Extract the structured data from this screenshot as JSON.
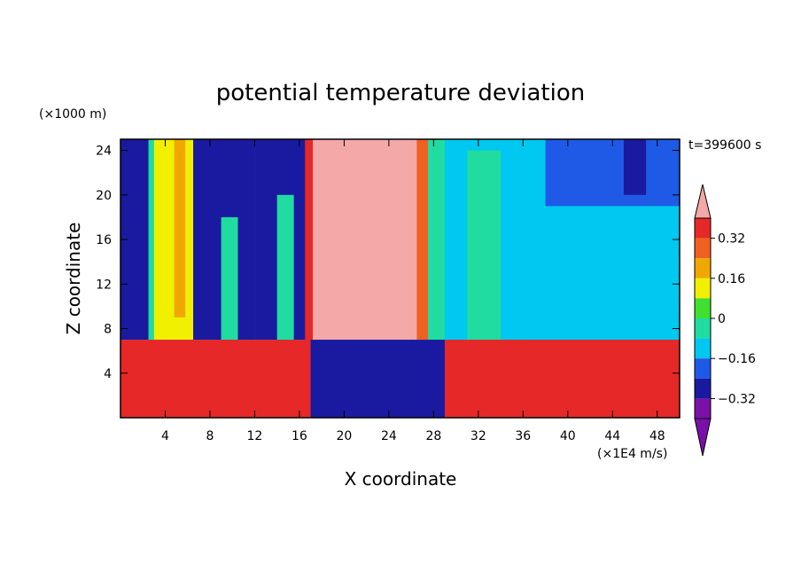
{
  "chart_data": {
    "type": "heatmap",
    "title": "potential temperature deviation",
    "xlabel": "X coordinate",
    "ylabel": "Z coordinate",
    "x_units": "(×1E4 m/s)",
    "y_units": "(×1000 m)",
    "time_label": "t=399600 s",
    "xlim": [
      0,
      50
    ],
    "ylim": [
      0,
      25
    ],
    "x_ticks": [
      4,
      8,
      12,
      16,
      20,
      24,
      28,
      32,
      36,
      40,
      44,
      48
    ],
    "y_ticks": [
      4,
      8,
      12,
      16,
      20,
      24
    ],
    "colorbar": {
      "labels": [
        "0.32",
        "0.16",
        "0",
        "-0.16",
        "-0.32"
      ],
      "levels": [
        -0.4,
        -0.32,
        -0.24,
        -0.16,
        -0.08,
        0,
        0.08,
        0.16,
        0.24,
        0.32,
        0.4
      ],
      "colors": [
        "#7a10a8",
        "#1a1aa0",
        "#1e5ae6",
        "#00c8f0",
        "#20dca0",
        "#40e030",
        "#f0f000",
        "#f0a800",
        "#f06020",
        "#e62828",
        "#f4a8a8"
      ]
    },
    "regions": [
      {
        "x": [
          0,
          50
        ],
        "z": [
          0,
          25
        ],
        "value": -0.2
      },
      {
        "x": [
          0,
          8
        ],
        "z": [
          7,
          25
        ],
        "value": -0.36
      },
      {
        "x": [
          2.5,
          3.8
        ],
        "z": [
          7,
          25
        ],
        "value": -0.1
      },
      {
        "x": [
          3,
          6.5
        ],
        "z": [
          7,
          25
        ],
        "value": 0.04
      },
      {
        "x": [
          4.8,
          5.8
        ],
        "z": [
          9,
          25
        ],
        "value": 0.14
      },
      {
        "x": [
          7.5,
          12
        ],
        "z": [
          7,
          25
        ],
        "value": -0.38
      },
      {
        "x": [
          9,
          10.5
        ],
        "z": [
          7,
          18
        ],
        "value": -0.1
      },
      {
        "x": [
          12,
          17
        ],
        "z": [
          7,
          25
        ],
        "value": -0.33
      },
      {
        "x": [
          14,
          15.5
        ],
        "z": [
          7,
          20
        ],
        "value": -0.12
      },
      {
        "x": [
          16.5,
          17.5
        ],
        "z": [
          7,
          25
        ],
        "value": 0.3
      },
      {
        "x": [
          17.2,
          26.5
        ],
        "z": [
          7,
          25
        ],
        "value": 0.42
      },
      {
        "x": [
          26.5,
          27.5
        ],
        "z": [
          7,
          25
        ],
        "value": 0.2
      },
      {
        "x": [
          27.5,
          29
        ],
        "z": [
          7,
          25
        ],
        "value": -0.12
      },
      {
        "x": [
          31,
          34
        ],
        "z": [
          7,
          24
        ],
        "value": -0.12
      },
      {
        "x": [
          0,
          17
        ],
        "z": [
          0,
          7
        ],
        "value": 0.3
      },
      {
        "x": [
          17,
          29
        ],
        "z": [
          0,
          7
        ],
        "value": -0.4
      },
      {
        "x": [
          29,
          50
        ],
        "z": [
          0,
          7
        ],
        "value": 0.3
      },
      {
        "x": [
          38,
          50
        ],
        "z": [
          19,
          25
        ],
        "value": -0.3
      },
      {
        "x": [
          45,
          47
        ],
        "z": [
          20,
          25
        ],
        "value": -0.38
      }
    ]
  }
}
